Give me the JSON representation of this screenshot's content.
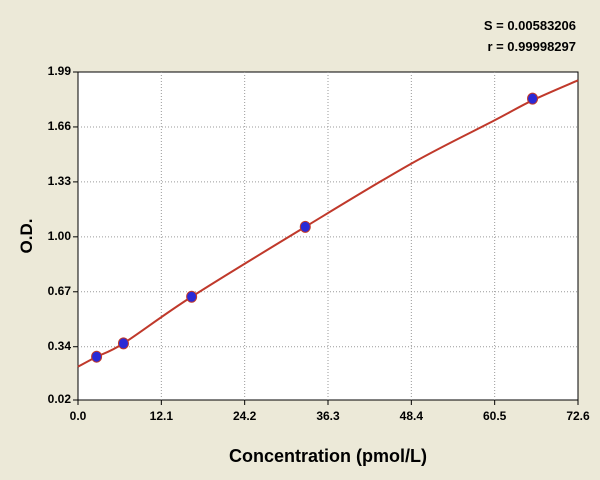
{
  "colors": {
    "background": "#ece9d8",
    "plot_bg": "#ffffff",
    "curve": "#c0392b",
    "point": "#2a2ad6",
    "grid": "#9a9a9a"
  },
  "stats": {
    "s_text": "S = 0.00583206",
    "r_text": "r = 0.99998297"
  },
  "chart_data": {
    "type": "scatter",
    "xlabel": "Concentration (pmol/L)",
    "ylabel": "O.D.",
    "xlim": [
      0.0,
      72.6
    ],
    "ylim": [
      0.02,
      1.99
    ],
    "x_ticks": [
      "0.0",
      "12.1",
      "24.2",
      "36.3",
      "48.4",
      "60.5",
      "72.6"
    ],
    "y_ticks": [
      "0.02",
      "0.34",
      "0.67",
      "1.00",
      "1.33",
      "1.66",
      "1.99"
    ],
    "grid": true,
    "series": [
      {
        "kind": "points",
        "x": [
          2.7,
          6.6,
          16.5,
          33.0,
          66.0
        ],
        "y": [
          0.28,
          0.36,
          0.64,
          1.06,
          1.83
        ]
      },
      {
        "kind": "fit-curve",
        "x": [
          0.0,
          2.7,
          6.6,
          16.5,
          33.0,
          48.4,
          60.5,
          66.0,
          72.6
        ],
        "y": [
          0.22,
          0.28,
          0.36,
          0.64,
          1.06,
          1.44,
          1.7,
          1.82,
          1.94
        ]
      }
    ]
  }
}
